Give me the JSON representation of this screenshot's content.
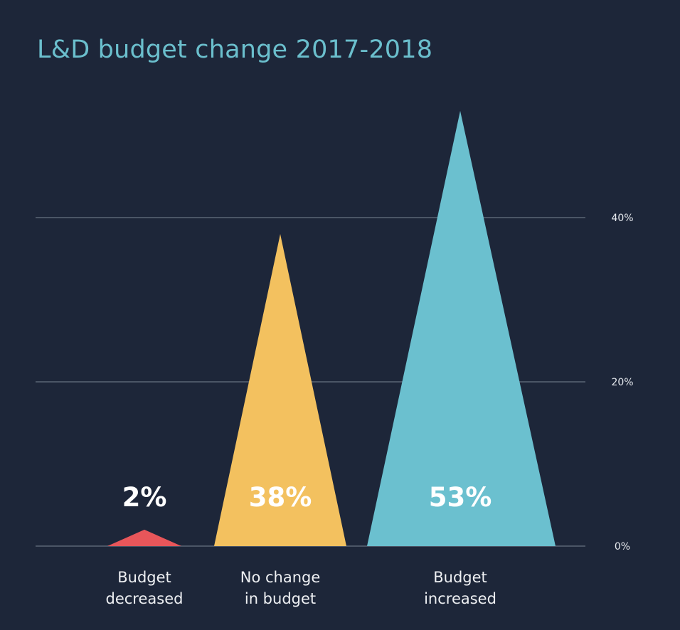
{
  "chart_data": {
    "type": "bar",
    "mark": "triangle",
    "title": "L&D budget change 2017-2018",
    "xlabel": "",
    "ylabel": "",
    "ylim": [
      0,
      40
    ],
    "yticks": [
      0,
      20,
      40
    ],
    "ytick_labels": [
      "0%",
      "20%",
      "40%"
    ],
    "grid": true,
    "axis_side": "right",
    "categories": [
      [
        "Budget",
        "decreased"
      ],
      [
        "No change",
        "in budget"
      ],
      [
        "Budget",
        "increased"
      ]
    ],
    "values": [
      2,
      38,
      53
    ],
    "value_labels": [
      "2%",
      "38%",
      "53%"
    ],
    "colors": [
      "#e8565a",
      "#f3c15f",
      "#6bc0cf"
    ]
  }
}
